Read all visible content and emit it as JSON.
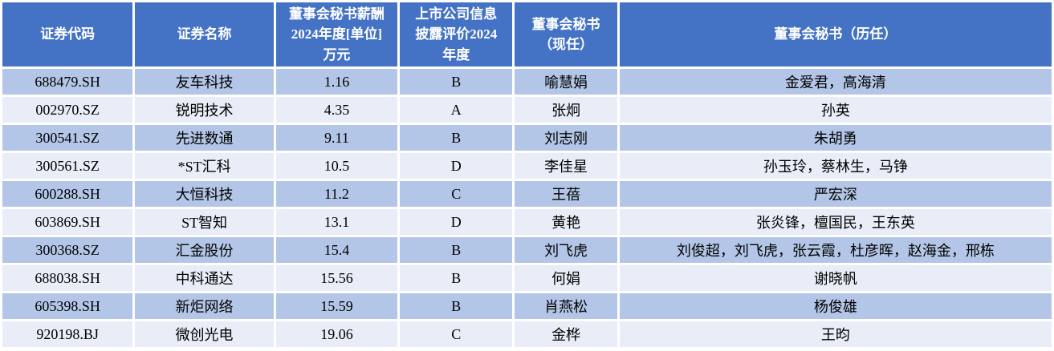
{
  "colors": {
    "header_bg": "#4472C4",
    "header_text": "#FFFFFF",
    "row_odd": "#B4C6E7",
    "row_even": "#E9EDF7",
    "grid": "#FFFFFF",
    "body_text": "#000000"
  },
  "chart_data": {
    "type": "table",
    "columns": [
      "证券代码",
      "证券名称",
      "董事会秘书薪酬\n2024年度[单位]\n万元",
      "上市公司信息\n披露评价2024\n年度",
      "董事会秘书\n（现任）",
      "董事会秘书（历任）"
    ],
    "rows": [
      {
        "code": "688479.SH",
        "name": "友车科技",
        "salary": "1.16",
        "rating": "B",
        "current": "喻慧娟",
        "former": "金爱君，高海清"
      },
      {
        "code": "002970.SZ",
        "name": "锐明技术",
        "salary": "4.35",
        "rating": "A",
        "current": "张炯",
        "former": "孙英"
      },
      {
        "code": "300541.SZ",
        "name": "先进数通",
        "salary": "9.11",
        "rating": "B",
        "current": "刘志刚",
        "former": "朱胡勇"
      },
      {
        "code": "300561.SZ",
        "name": "*ST汇科",
        "salary": "10.5",
        "rating": "D",
        "current": "李佳星",
        "former": "孙玉玲，蔡林生，马铮"
      },
      {
        "code": "600288.SH",
        "name": "大恒科技",
        "salary": "11.2",
        "rating": "C",
        "current": "王蓓",
        "former": "严宏深"
      },
      {
        "code": "603869.SH",
        "name": "ST智知",
        "salary": "13.1",
        "rating": "D",
        "current": "黄艳",
        "former": "张炎锋，檀国民，王东英"
      },
      {
        "code": "300368.SZ",
        "name": "汇金股份",
        "salary": "15.4",
        "rating": "B",
        "current": "刘飞虎",
        "former": "刘俊超，刘飞虎，张云霞，杜彦晖，赵海金，邢栋"
      },
      {
        "code": "688038.SH",
        "name": "中科通达",
        "salary": "15.56",
        "rating": "B",
        "current": "何娟",
        "former": "谢晓帆"
      },
      {
        "code": "605398.SH",
        "name": "新炬网络",
        "salary": "15.59",
        "rating": "B",
        "current": "肖燕松",
        "former": "杨俊雄"
      },
      {
        "code": "920198.BJ",
        "name": "微创光电",
        "salary": "19.06",
        "rating": "C",
        "current": "金桦",
        "former": "王昀"
      }
    ]
  }
}
